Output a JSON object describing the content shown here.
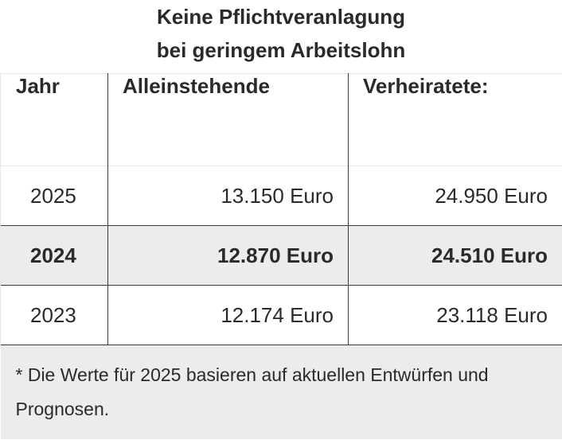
{
  "caption": {
    "line1": "Keine Pflichtveranlagung",
    "line2": "bei geringem Arbeitslohn"
  },
  "table": {
    "headers": [
      "Jahr",
      "Alleinstehende",
      "Verheiratete:"
    ],
    "rows": [
      {
        "year": "2025",
        "single": "13.150 Euro",
        "married": "24.950 Euro",
        "highlight": false
      },
      {
        "year": "2024",
        "single": "12.870 Euro",
        "married": "24.510 Euro",
        "highlight": true
      },
      {
        "year": "2023",
        "single": "12.174 Euro",
        "married": "23.118 Euro",
        "highlight": false
      }
    ],
    "footnote": "* Die Werte für 2025 basieren auf aktuellen Entwürfen und Prognosen."
  },
  "colors": {
    "text": "#2a2a2a",
    "highlight_background": "#ececec",
    "grid_line": "#3a3a3a"
  }
}
